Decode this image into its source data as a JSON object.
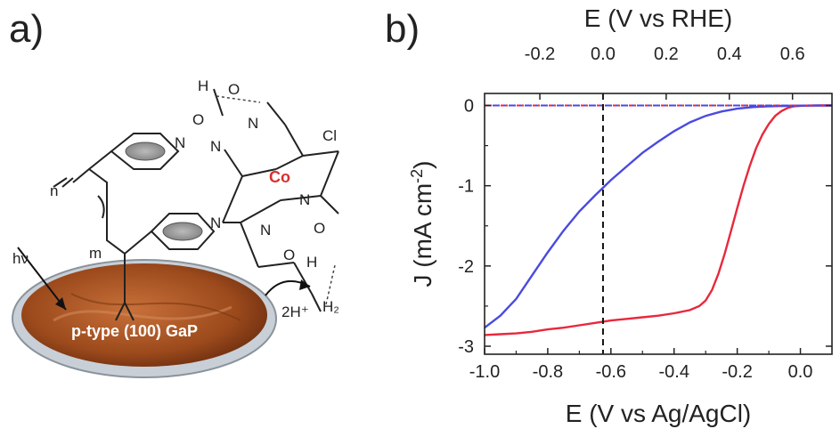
{
  "panel_a": {
    "label": "a)",
    "light_label": "hν",
    "substrate_label": "p-type (100) GaP",
    "cobalt": "Co",
    "chloride": "Cl",
    "nitrogen": "N",
    "oxygen": "O",
    "hydrogen": "H",
    "index_n": "n",
    "index_m": "m",
    "reactant": "2H⁺",
    "product": "H₂",
    "colors": {
      "cobalt": "#d93030",
      "substrate": "#a0522d"
    }
  },
  "panel_b": {
    "label": "b)"
  },
  "chart_data": {
    "type": "line",
    "xlabel": "E (V vs Ag/AgCl)",
    "x2label": "E (V vs RHE)",
    "ylabel": "J (mA cm",
    "ylabel_sup": "-2",
    "ylabel_close": ")",
    "xlim": [
      -1.0,
      0.1
    ],
    "ylim": [
      -3.1,
      0.15
    ],
    "x_ticks": [
      -1.0,
      -0.8,
      -0.6,
      -0.4,
      -0.2,
      0.0
    ],
    "x_tick_labels": [
      "-1.0",
      "-0.8",
      "-0.6",
      "-0.4",
      "-0.2",
      "0.0"
    ],
    "x2_offset": 0.625,
    "x2_ticks": [
      -0.2,
      0.0,
      0.2,
      0.4,
      0.6
    ],
    "x2_tick_labels": [
      "-0.2",
      "0.0",
      "0.2",
      "0.4",
      "0.6"
    ],
    "y_ticks": [
      0,
      -1,
      -2,
      -3
    ],
    "y_tick_labels": [
      "0",
      "-1",
      "-2",
      "-3"
    ],
    "reference_line_x": -0.625,
    "series": [
      {
        "color": "#e8283c",
        "style": "solid",
        "x": [
          -1.0,
          -0.95,
          -0.9,
          -0.85,
          -0.8,
          -0.75,
          -0.7,
          -0.65,
          -0.6,
          -0.55,
          -0.5,
          -0.45,
          -0.4,
          -0.35,
          -0.32,
          -0.3,
          -0.28,
          -0.26,
          -0.24,
          -0.22,
          -0.2,
          -0.18,
          -0.16,
          -0.14,
          -0.12,
          -0.1,
          -0.08,
          -0.06,
          -0.04,
          -0.02,
          0.0,
          0.02,
          0.04,
          0.06,
          0.08,
          0.1
        ],
        "y": [
          -2.86,
          -2.85,
          -2.84,
          -2.82,
          -2.79,
          -2.77,
          -2.74,
          -2.71,
          -2.68,
          -2.66,
          -2.64,
          -2.62,
          -2.59,
          -2.55,
          -2.5,
          -2.43,
          -2.3,
          -2.1,
          -1.85,
          -1.57,
          -1.28,
          -1.0,
          -0.75,
          -0.53,
          -0.36,
          -0.23,
          -0.13,
          -0.07,
          -0.03,
          -0.01,
          -0.004,
          -0.002,
          -0.001,
          0.0,
          0.0,
          0.0
        ]
      },
      {
        "color": "#4a4ae0",
        "style": "solid",
        "x": [
          -1.0,
          -0.95,
          -0.9,
          -0.85,
          -0.8,
          -0.75,
          -0.7,
          -0.65,
          -0.6,
          -0.55,
          -0.5,
          -0.45,
          -0.4,
          -0.35,
          -0.3,
          -0.25,
          -0.2,
          -0.15,
          -0.1,
          -0.05,
          0.0,
          0.05,
          0.1
        ],
        "y": [
          -2.77,
          -2.62,
          -2.41,
          -2.12,
          -1.83,
          -1.56,
          -1.32,
          -1.12,
          -0.93,
          -0.76,
          -0.59,
          -0.45,
          -0.32,
          -0.21,
          -0.13,
          -0.075,
          -0.04,
          -0.02,
          -0.01,
          -0.005,
          -0.002,
          -0.001,
          0.0
        ]
      },
      {
        "color": "#e8283c",
        "style": "dashdot",
        "x": [
          -1.0,
          0.1
        ],
        "y": [
          0.0,
          0.0
        ]
      },
      {
        "color": "#4a4ae0",
        "style": "dashdot",
        "x": [
          -1.0,
          0.1
        ],
        "y": [
          0.0,
          0.0
        ]
      }
    ]
  }
}
